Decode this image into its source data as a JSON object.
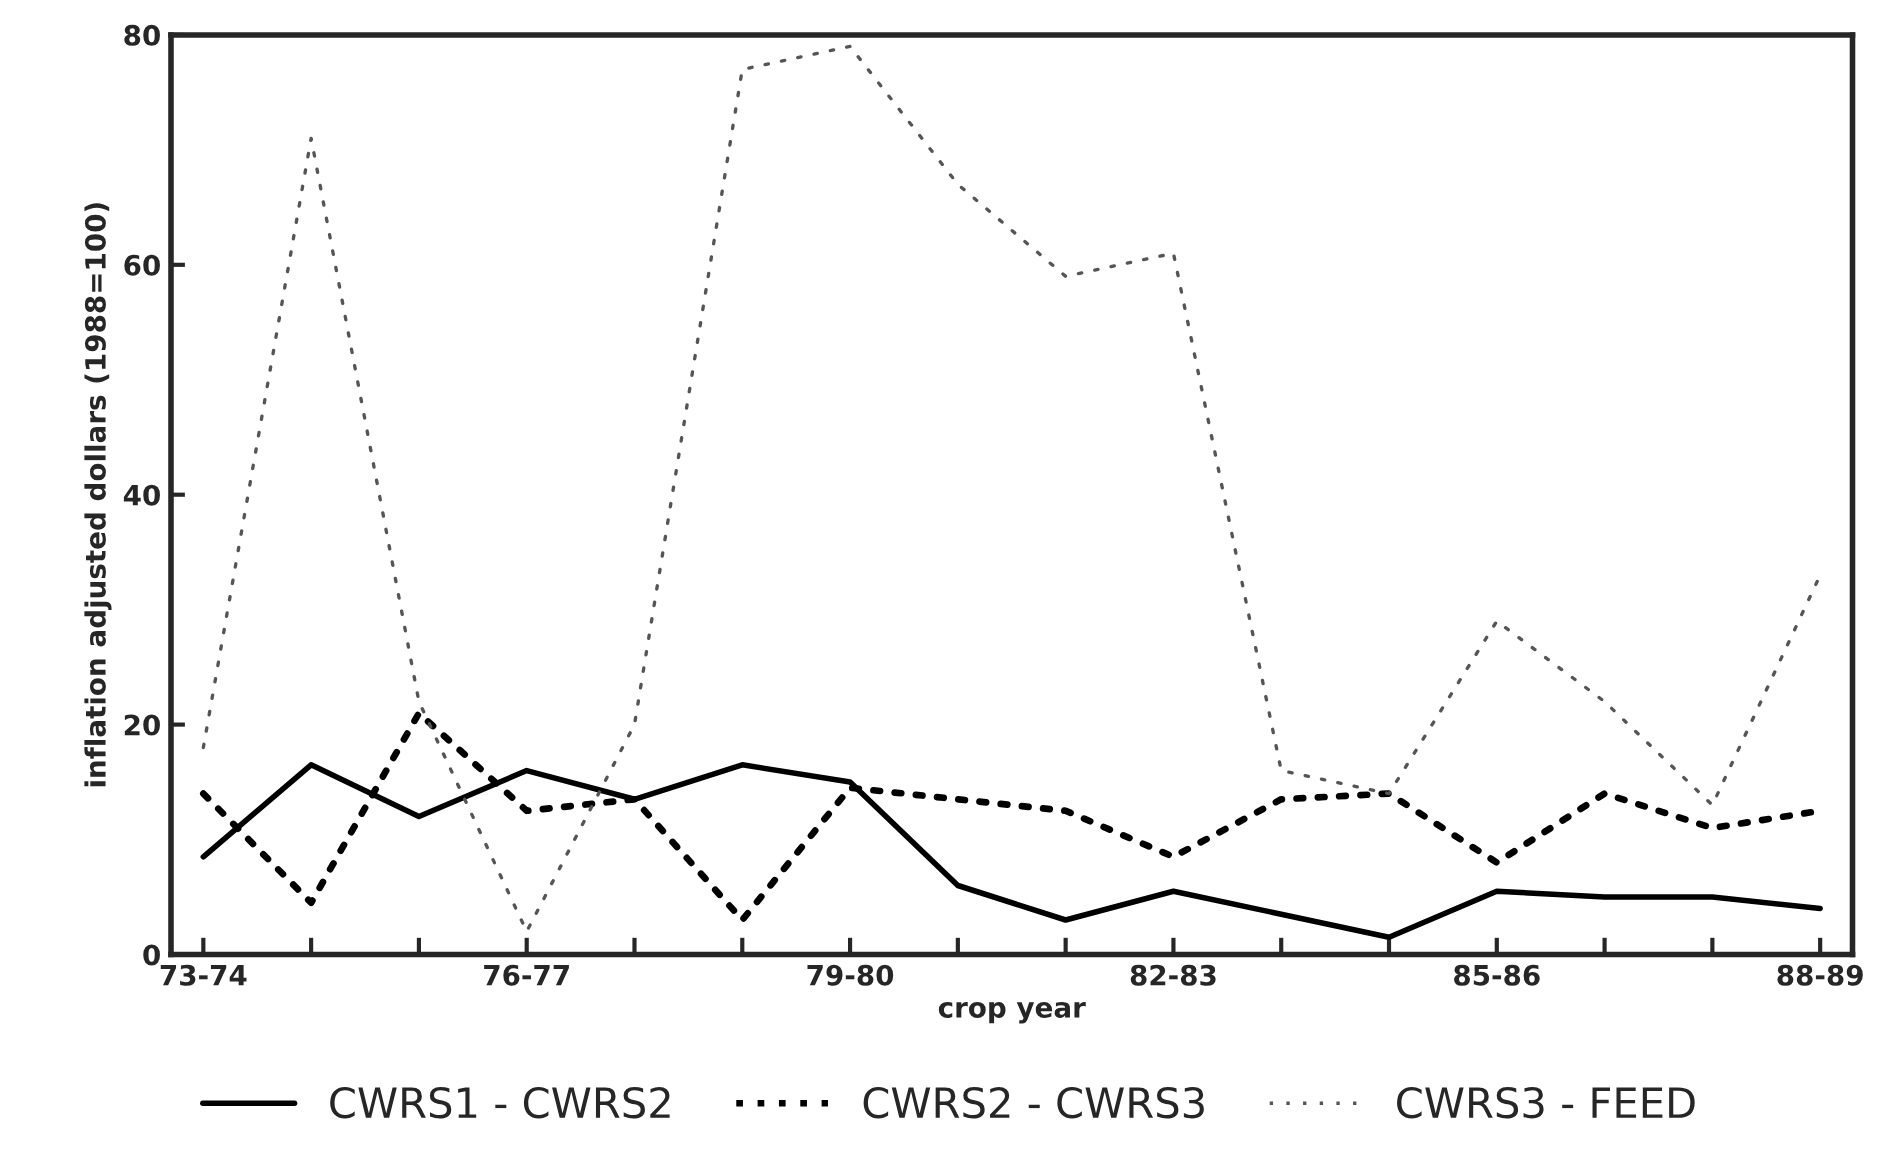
{
  "chart_data": {
    "type": "line",
    "xlabel": "crop year",
    "ylabel": "inflation adjusted dollars (1988=100)",
    "categories": [
      "73-74",
      null,
      null,
      "76-77",
      null,
      null,
      "79-80",
      null,
      null,
      "82-83",
      null,
      null,
      "85-86",
      null,
      null,
      "88-89"
    ],
    "series": [
      {
        "name": "CWRS1 - CWRS2",
        "color": "#000000",
        "line_style": "solid",
        "values": [
          8.5,
          16.5,
          12,
          16,
          13.5,
          16.5,
          15,
          6,
          3,
          5.5,
          3.5,
          1.5,
          5.5,
          5,
          5,
          4
        ]
      },
      {
        "name": "CWRS2 - CWRS3",
        "color": "#000000",
        "line_style": "dotted",
        "values": [
          14,
          4.5,
          21,
          12.5,
          13.5,
          3,
          14.5,
          13.5,
          12.5,
          8.5,
          13.5,
          14,
          8,
          14,
          11,
          12.5
        ]
      },
      {
        "name": "CWRS3 - FEED",
        "color": "#555555",
        "line_style": "sparse",
        "values": [
          18,
          71,
          22,
          2,
          20,
          77,
          79,
          67,
          59,
          61,
          16,
          14,
          29,
          22,
          13,
          33
        ]
      }
    ],
    "ylim": [
      0,
      80
    ],
    "yticks": [
      0,
      20,
      40,
      60,
      80
    ],
    "grid": false,
    "legend": "bottom",
    "marker": "none"
  }
}
